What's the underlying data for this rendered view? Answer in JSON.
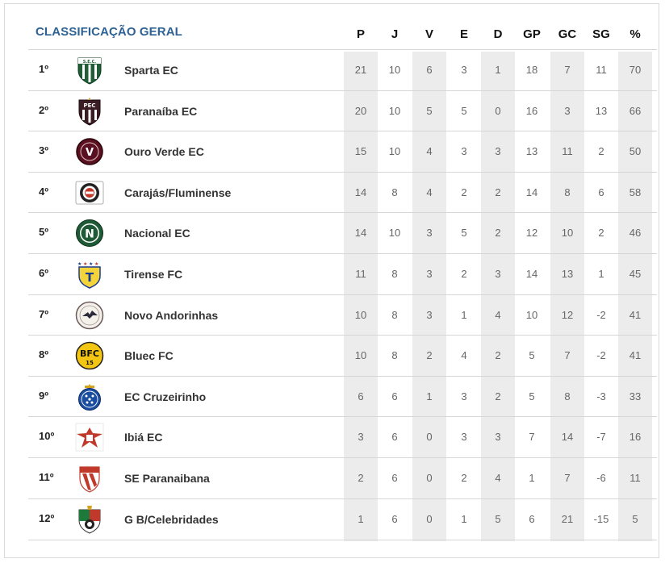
{
  "title": "CLASSIFICAÇÃO GERAL",
  "columns": [
    "P",
    "J",
    "V",
    "E",
    "D",
    "GP",
    "GC",
    "SG",
    "%"
  ],
  "rows": [
    {
      "pos": "1º",
      "team": "Sparta EC",
      "logo": "sparta-crest-icon",
      "stats": [
        "21",
        "10",
        "6",
        "3",
        "1",
        "18",
        "7",
        "11",
        "70"
      ]
    },
    {
      "pos": "2º",
      "team": "Paranaíba EC",
      "logo": "paranaiba-crest-icon",
      "stats": [
        "20",
        "10",
        "5",
        "5",
        "0",
        "16",
        "3",
        "13",
        "66"
      ]
    },
    {
      "pos": "3º",
      "team": "Ouro Verde EC",
      "logo": "ouro-verde-crest-icon",
      "stats": [
        "15",
        "10",
        "4",
        "3",
        "3",
        "13",
        "11",
        "2",
        "50"
      ]
    },
    {
      "pos": "4º",
      "team": "Carajás/Fluminense",
      "logo": "carajas-crest-icon",
      "stats": [
        "14",
        "8",
        "4",
        "2",
        "2",
        "14",
        "8",
        "6",
        "58"
      ]
    },
    {
      "pos": "5º",
      "team": "Nacional EC",
      "logo": "nacional-crest-icon",
      "stats": [
        "14",
        "10",
        "3",
        "5",
        "2",
        "12",
        "10",
        "2",
        "46"
      ]
    },
    {
      "pos": "6º",
      "team": "Tirense FC",
      "logo": "tirense-crest-icon",
      "stats": [
        "11",
        "8",
        "3",
        "2",
        "3",
        "14",
        "13",
        "1",
        "45"
      ]
    },
    {
      "pos": "7º",
      "team": "Novo Andorinhas",
      "logo": "novo-andorinhas-crest-icon",
      "stats": [
        "10",
        "8",
        "3",
        "1",
        "4",
        "10",
        "12",
        "-2",
        "41"
      ]
    },
    {
      "pos": "8º",
      "team": "Bluec FC",
      "logo": "bluec-crest-icon",
      "stats": [
        "10",
        "8",
        "2",
        "4",
        "2",
        "5",
        "7",
        "-2",
        "41"
      ]
    },
    {
      "pos": "9º",
      "team": "EC Cruzeirinho",
      "logo": "cruzeirinho-crest-icon",
      "stats": [
        "6",
        "6",
        "1",
        "3",
        "2",
        "5",
        "8",
        "-3",
        "33"
      ]
    },
    {
      "pos": "10º",
      "team": "Ibiá EC",
      "logo": "ibia-crest-icon",
      "stats": [
        "3",
        "6",
        "0",
        "3",
        "3",
        "7",
        "14",
        "-7",
        "16"
      ]
    },
    {
      "pos": "11º",
      "team": "SE Paranaibana",
      "logo": "se-paranaibana-crest-icon",
      "stats": [
        "2",
        "6",
        "0",
        "2",
        "4",
        "1",
        "7",
        "-6",
        "11"
      ]
    },
    {
      "pos": "12º",
      "team": "G B/Celebridades",
      "logo": "gb-celebridades-crest-icon",
      "stats": [
        "1",
        "6",
        "0",
        "1",
        "5",
        "6",
        "21",
        "-15",
        "5"
      ]
    }
  ],
  "logo_text": {
    "sparta": "S.E.C.",
    "paranaiba": "PEC",
    "ouro_verde": "V",
    "nacional": "N",
    "tirense": "T",
    "bluec_top": "BFC",
    "bluec_num": "15"
  },
  "colors": {
    "title": "#2f6294",
    "shade": "#ececec",
    "rule": "#d6d6d6"
  }
}
